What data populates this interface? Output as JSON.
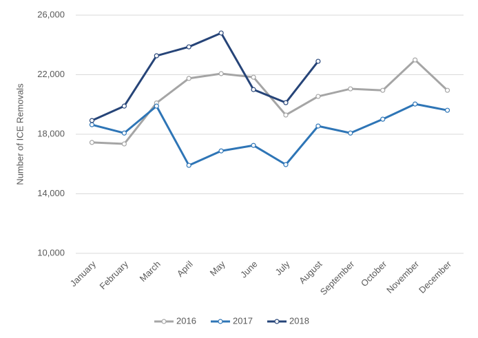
{
  "chart_data": {
    "type": "line",
    "y_label": "Number of ICE Removals",
    "categories": [
      "January",
      "February",
      "March",
      "April",
      "May",
      "June",
      "July",
      "August",
      "September",
      "October",
      "November",
      "December"
    ],
    "series": [
      {
        "name": "2016",
        "color": "#a5a5a5",
        "values": [
          17450,
          17350,
          20100,
          21750,
          22070,
          21830,
          19290,
          20540,
          21050,
          20950,
          22990,
          20950
        ]
      },
      {
        "name": "2017",
        "color": "#2e75b6",
        "values": [
          18640,
          18080,
          19890,
          15910,
          16880,
          17250,
          15960,
          18550,
          18080,
          19010,
          20030,
          19610
        ]
      },
      {
        "name": "2018",
        "color": "#264478",
        "values": [
          18920,
          19890,
          23270,
          23870,
          24800,
          21000,
          20120,
          22900,
          null,
          null,
          null,
          null
        ]
      }
    ],
    "ylim": [
      10000,
      26000
    ],
    "yticks": [
      {
        "value": 10000,
        "label": "10,000"
      },
      {
        "value": 14000,
        "label": "14,000"
      },
      {
        "value": 18000,
        "label": "18,000"
      },
      {
        "value": 22000,
        "label": "22,000"
      },
      {
        "value": 26000,
        "label": "26,000"
      }
    ],
    "grid": true,
    "legend": "bottom"
  }
}
